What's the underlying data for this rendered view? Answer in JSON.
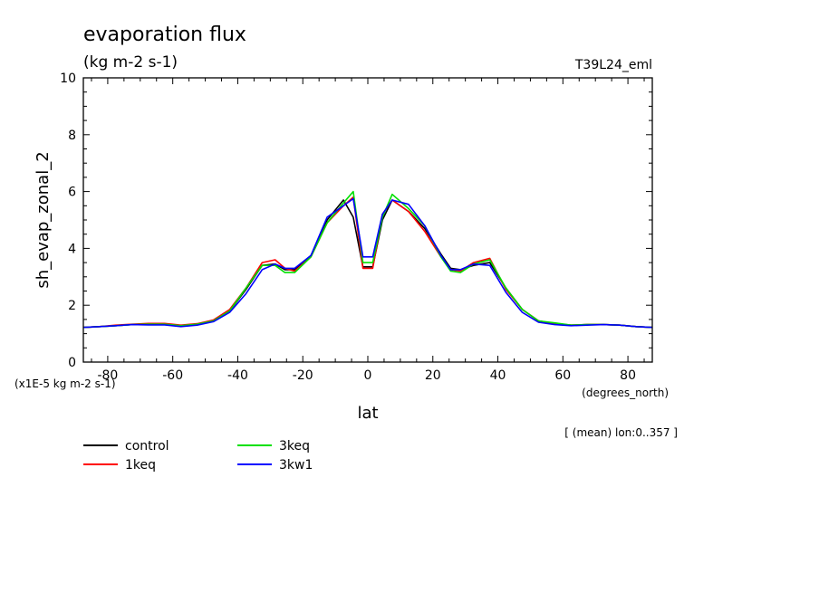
{
  "chart_data": {
    "type": "line",
    "title": "evaporation flux",
    "subtitle": "(kg m-2 s-1)",
    "run_label": "T39L24_eml",
    "xlabel": "lat",
    "x_units": "(degrees_north)",
    "ylabel": "sh_evap_zonal_2",
    "y_scale_note": "(x1E-5 kg m-2 s-1)",
    "mean_note": "[ (mean) lon:0..357 ]",
    "xlim": [
      -87.5,
      87.5
    ],
    "ylim": [
      0,
      10
    ],
    "x_ticks": [
      -80,
      -60,
      -40,
      -20,
      0,
      20,
      40,
      60,
      80
    ],
    "y_ticks": [
      0,
      2,
      4,
      6,
      8,
      10
    ],
    "x_tick_labels": [
      "-80",
      "-60",
      "-40",
      "-20",
      "0",
      "20",
      "40",
      "60",
      "80"
    ],
    "y_tick_labels": [
      "0",
      "2",
      "4",
      "6",
      "8",
      "10"
    ],
    "grid": false,
    "legend_position": "bottom-left",
    "x": [
      -87.5,
      -82.5,
      -77.5,
      -72.5,
      -67.5,
      -62.5,
      -57.5,
      -52.5,
      -47.5,
      -42.5,
      -37.5,
      -32.5,
      -28.5,
      -25.5,
      -22.5,
      -17.5,
      -12.5,
      -7.5,
      -4.5,
      -1.5,
      1.5,
      4.5,
      7.5,
      12.5,
      17.5,
      22.5,
      25.5,
      28.5,
      32.5,
      37.5,
      42.5,
      47.5,
      52.5,
      57.5,
      62.5,
      67.5,
      72.5,
      77.5,
      82.5,
      87.5
    ],
    "series": [
      {
        "name": "control",
        "color": "#000000",
        "values": [
          1.22,
          1.25,
          1.28,
          1.32,
          1.33,
          1.33,
          1.28,
          1.33,
          1.45,
          1.8,
          2.55,
          3.4,
          3.45,
          3.25,
          3.25,
          3.75,
          5.0,
          5.7,
          5.1,
          3.35,
          3.35,
          5.0,
          5.7,
          5.3,
          4.7,
          3.8,
          3.3,
          3.25,
          3.4,
          3.5,
          2.6,
          1.85,
          1.45,
          1.35,
          1.3,
          1.32,
          1.32,
          1.3,
          1.25,
          1.22
        ]
      },
      {
        "name": "1keq",
        "color": "#ff0000",
        "values": [
          1.22,
          1.25,
          1.3,
          1.33,
          1.36,
          1.36,
          1.3,
          1.35,
          1.48,
          1.85,
          2.6,
          3.5,
          3.6,
          3.3,
          3.2,
          3.7,
          4.9,
          5.5,
          5.8,
          3.3,
          3.3,
          5.2,
          5.7,
          5.3,
          4.6,
          3.7,
          3.25,
          3.2,
          3.5,
          3.65,
          2.55,
          1.85,
          1.45,
          1.35,
          1.3,
          1.32,
          1.32,
          1.3,
          1.25,
          1.22
        ]
      },
      {
        "name": "3keq",
        "color": "#00e000",
        "values": [
          1.22,
          1.25,
          1.28,
          1.32,
          1.33,
          1.33,
          1.28,
          1.33,
          1.45,
          1.8,
          2.6,
          3.4,
          3.4,
          3.15,
          3.15,
          3.7,
          4.9,
          5.6,
          6.0,
          3.5,
          3.5,
          5.1,
          5.9,
          5.4,
          4.8,
          3.7,
          3.2,
          3.15,
          3.45,
          3.6,
          2.6,
          1.85,
          1.45,
          1.38,
          1.3,
          1.32,
          1.32,
          1.3,
          1.25,
          1.22
        ]
      },
      {
        "name": "3kw1",
        "color": "#0000ff",
        "values": [
          1.22,
          1.25,
          1.28,
          1.32,
          1.31,
          1.31,
          1.25,
          1.3,
          1.42,
          1.75,
          2.4,
          3.25,
          3.45,
          3.3,
          3.3,
          3.75,
          5.1,
          5.5,
          5.75,
          3.7,
          3.7,
          5.2,
          5.7,
          5.55,
          4.8,
          3.75,
          3.25,
          3.25,
          3.45,
          3.4,
          2.45,
          1.75,
          1.4,
          1.32,
          1.28,
          1.3,
          1.32,
          1.3,
          1.25,
          1.22
        ]
      }
    ]
  }
}
